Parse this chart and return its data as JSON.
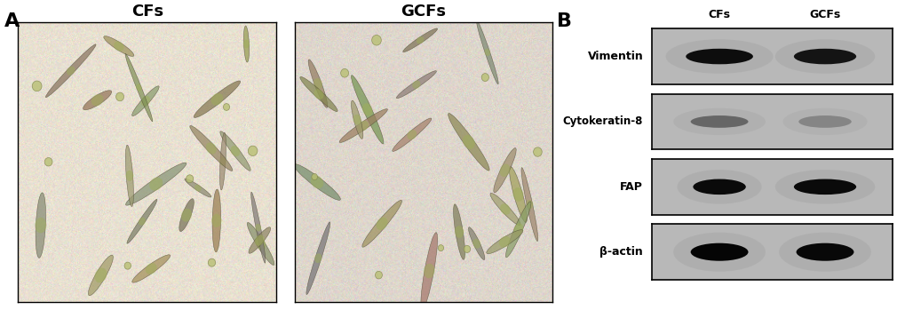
{
  "fig_width": 10.2,
  "fig_height": 3.58,
  "bg_color": "#ffffff",
  "panel_A_label": "A",
  "panel_B_label": "B",
  "cf_label": "CFs",
  "gcf_label": "GCFs",
  "markers": [
    "Vimentin",
    "Cytokeratin-8",
    "FAP",
    "β-actin"
  ],
  "wb_panel_bg": "#c8c8c8",
  "wb_band_colors": {
    "Vimentin_CF": "#0a0a0a",
    "Vimentin_GCF": "#111111",
    "Cytokeratin8_CF": "#555555",
    "Cytokeratin8_GCF": "#777777",
    "FAP_CF": "#0d0d0d",
    "FAP_GCF": "#0d0d0d",
    "Bactin_CF": "#060606",
    "Bactin_GCF": "#080808"
  },
  "microscopy_bg_CF": "#e8e0d0",
  "microscopy_bg_GCF": "#ddd8cc"
}
